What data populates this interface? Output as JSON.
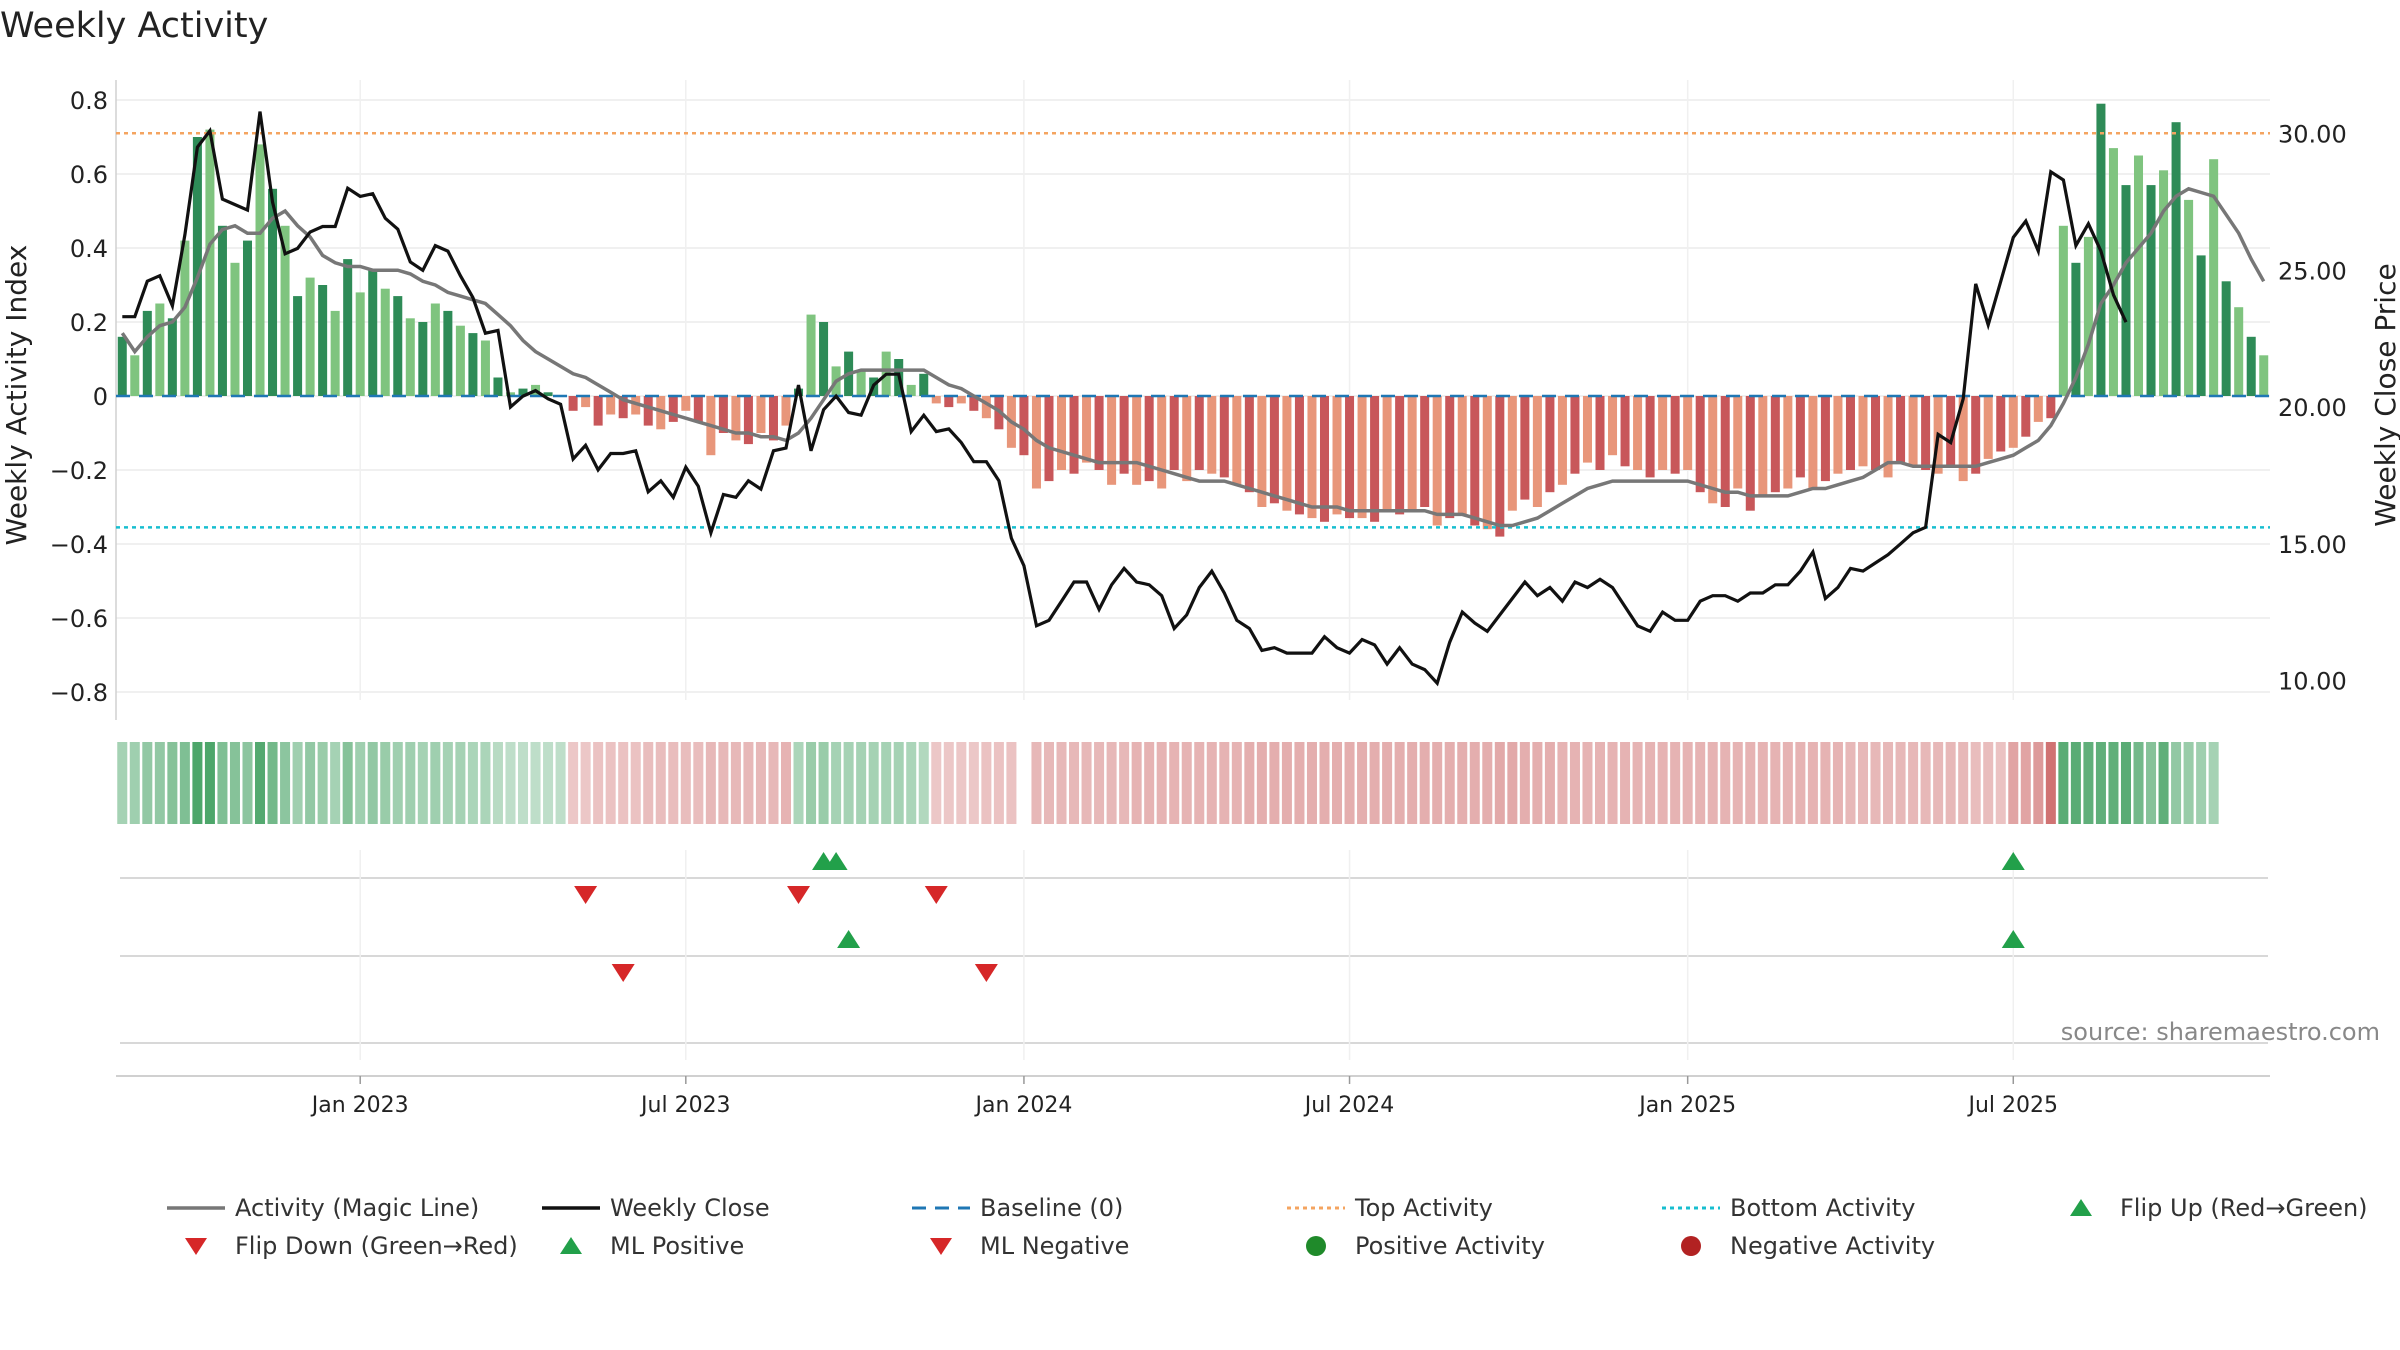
{
  "title": "Weekly Activity",
  "source": "source: sharemaestro.com",
  "colors": {
    "pos_dark": "#2e8b57",
    "pos_light": "#7fc47f",
    "neg_dark": "#c8575a",
    "neg_light": "#e8967a",
    "magic": "#777777",
    "close": "#111111",
    "baseline": "#1f77b4",
    "top": "#f4a460",
    "bottom": "#17becf",
    "flip_up": "#22a04a",
    "flip_down": "#d62728"
  },
  "chart_data": {
    "type": "bar",
    "title": "Weekly Activity",
    "ylabel_left": "Weekly Activity Index",
    "ylabel_right": "Weekly Close Price",
    "ylim_left": [
      -0.85,
      0.85
    ],
    "ylim_right": [
      8.8,
      31.7
    ],
    "yticks_left": [
      "0.8",
      "0.6",
      "0.4",
      "0.2",
      "0",
      "−0.2",
      "−0.4",
      "−0.6",
      "−0.8"
    ],
    "yticks_left_values": [
      0.8,
      0.6,
      0.4,
      0.2,
      0,
      -0.2,
      -0.4,
      -0.6,
      -0.8
    ],
    "yticks_right": [
      "30.00",
      "25.00",
      "20.00",
      "15.00",
      "10.00"
    ],
    "yticks_right_values": [
      30,
      25,
      20,
      15,
      10
    ],
    "xticks": [
      "Jan 2023",
      "Jul 2023",
      "Jan 2024",
      "Jul 2024",
      "Jan 2025",
      "Jul 2025"
    ],
    "xticks_week_index": [
      19,
      45,
      72,
      98,
      125,
      151
    ],
    "top_activity": 0.71,
    "bottom_activity": -0.355,
    "activity": [
      0.16,
      0.11,
      0.23,
      0.25,
      0.21,
      0.42,
      0.7,
      0.72,
      0.46,
      0.36,
      0.42,
      0.68,
      0.56,
      0.46,
      0.27,
      0.32,
      0.3,
      0.23,
      0.37,
      0.28,
      0.34,
      0.29,
      0.27,
      0.21,
      0.2,
      0.25,
      0.23,
      0.19,
      0.17,
      0.15,
      0.05,
      0.01,
      0.02,
      0.03,
      0.01,
      0.0,
      -0.04,
      -0.03,
      -0.08,
      -0.05,
      -0.06,
      -0.05,
      -0.08,
      -0.09,
      -0.07,
      -0.04,
      -0.07,
      -0.16,
      -0.1,
      -0.12,
      -0.13,
      -0.1,
      -0.12,
      -0.08,
      0.02,
      0.22,
      0.2,
      0.08,
      0.12,
      0.07,
      0.05,
      0.12,
      0.1,
      0.03,
      0.06,
      -0.02,
      -0.03,
      -0.02,
      -0.04,
      -0.06,
      -0.09,
      -0.14,
      -0.16,
      -0.25,
      -0.23,
      -0.2,
      -0.21,
      -0.18,
      -0.2,
      -0.24,
      -0.21,
      -0.24,
      -0.23,
      -0.25,
      -0.2,
      -0.23,
      -0.2,
      -0.21,
      -0.22,
      -0.24,
      -0.26,
      -0.3,
      -0.29,
      -0.31,
      -0.32,
      -0.33,
      -0.34,
      -0.32,
      -0.33,
      -0.33,
      -0.34,
      -0.31,
      -0.32,
      -0.31,
      -0.3,
      -0.35,
      -0.33,
      -0.32,
      -0.35,
      -0.36,
      -0.38,
      -0.31,
      -0.28,
      -0.3,
      -0.26,
      -0.24,
      -0.21,
      -0.18,
      -0.2,
      -0.16,
      -0.19,
      -0.2,
      -0.22,
      -0.2,
      -0.21,
      -0.2,
      -0.26,
      -0.29,
      -0.3,
      -0.25,
      -0.31,
      -0.27,
      -0.26,
      -0.25,
      -0.22,
      -0.25,
      -0.23,
      -0.21,
      -0.2,
      -0.19,
      -0.2,
      -0.22,
      -0.18,
      -0.19,
      -0.2,
      -0.21,
      -0.19,
      -0.23,
      -0.21,
      -0.17,
      -0.15,
      -0.14,
      -0.11,
      -0.07,
      -0.06,
      0.46,
      0.36,
      0.43,
      0.79,
      0.67,
      0.57,
      0.65,
      0.57,
      0.61,
      0.74,
      0.53,
      0.38,
      0.64,
      0.31,
      0.24,
      0.16,
      0.11
    ],
    "magic_line": [
      0.17,
      0.12,
      0.16,
      0.19,
      0.2,
      0.24,
      0.32,
      0.41,
      0.45,
      0.46,
      0.44,
      0.44,
      0.48,
      0.5,
      0.46,
      0.43,
      0.38,
      0.36,
      0.35,
      0.35,
      0.34,
      0.34,
      0.34,
      0.33,
      0.31,
      0.3,
      0.28,
      0.27,
      0.26,
      0.25,
      0.22,
      0.19,
      0.15,
      0.12,
      0.1,
      0.08,
      0.06,
      0.05,
      0.03,
      0.01,
      -0.01,
      -0.02,
      -0.03,
      -0.04,
      -0.05,
      -0.06,
      -0.07,
      -0.08,
      -0.09,
      -0.1,
      -0.1,
      -0.11,
      -0.11,
      -0.12,
      -0.1,
      -0.06,
      -0.01,
      0.04,
      0.06,
      0.07,
      0.07,
      0.07,
      0.07,
      0.07,
      0.07,
      0.05,
      0.03,
      0.02,
      0.0,
      -0.02,
      -0.04,
      -0.07,
      -0.09,
      -0.12,
      -0.14,
      -0.15,
      -0.16,
      -0.17,
      -0.18,
      -0.18,
      -0.18,
      -0.18,
      -0.19,
      -0.2,
      -0.21,
      -0.22,
      -0.23,
      -0.23,
      -0.23,
      -0.24,
      -0.25,
      -0.26,
      -0.27,
      -0.28,
      -0.29,
      -0.3,
      -0.3,
      -0.3,
      -0.31,
      -0.31,
      -0.31,
      -0.31,
      -0.31,
      -0.31,
      -0.31,
      -0.32,
      -0.32,
      -0.32,
      -0.33,
      -0.34,
      -0.35,
      -0.35,
      -0.34,
      -0.33,
      -0.31,
      -0.29,
      -0.27,
      -0.25,
      -0.24,
      -0.23,
      -0.23,
      -0.23,
      -0.23,
      -0.23,
      -0.23,
      -0.23,
      -0.24,
      -0.25,
      -0.26,
      -0.26,
      -0.27,
      -0.27,
      -0.27,
      -0.27,
      -0.26,
      -0.25,
      -0.25,
      -0.24,
      -0.23,
      -0.22,
      -0.2,
      -0.18,
      -0.18,
      -0.19,
      -0.19,
      -0.19,
      -0.19,
      -0.19,
      -0.19,
      -0.18,
      -0.17,
      -0.16,
      -0.14,
      -0.12,
      -0.08,
      -0.02,
      0.05,
      0.14,
      0.25,
      0.3,
      0.36,
      0.4,
      0.44,
      0.5,
      0.54,
      0.56,
      0.55,
      0.54,
      0.49,
      0.44,
      0.37,
      0.31
    ],
    "weekly_close": [
      23.3,
      23.3,
      24.6,
      24.8,
      23.7,
      26.3,
      29.5,
      30.1,
      27.6,
      27.4,
      27.2,
      30.8,
      27.5,
      25.6,
      25.8,
      26.4,
      26.6,
      26.6,
      28.0,
      27.7,
      27.8,
      26.9,
      26.5,
      25.3,
      25.0,
      25.9,
      25.7,
      24.8,
      24.0,
      22.7,
      22.8,
      20.0,
      20.4,
      20.6,
      20.3,
      20.1,
      18.1,
      18.6,
      17.7,
      18.3,
      18.3,
      18.4,
      16.9,
      17.3,
      16.7,
      17.8,
      17.1,
      15.4,
      16.8,
      16.7,
      17.3,
      17.0,
      18.4,
      18.5,
      20.8,
      18.4,
      19.9,
      20.4,
      19.8,
      19.7,
      20.8,
      21.2,
      21.2,
      19.1,
      19.7,
      19.1,
      19.2,
      18.7,
      18.0,
      18.0,
      17.3,
      15.2,
      14.2,
      12.0,
      12.2,
      12.9,
      13.6,
      13.6,
      12.6,
      13.5,
      14.1,
      13.6,
      13.5,
      13.1,
      11.9,
      12.4,
      13.4,
      14.0,
      13.2,
      12.2,
      11.9,
      11.1,
      11.2,
      11.0,
      11.0,
      11.0,
      11.6,
      11.2,
      11.0,
      11.5,
      11.3,
      10.6,
      11.2,
      10.6,
      10.4,
      9.9,
      11.4,
      12.5,
      12.1,
      11.8,
      12.4,
      13.0,
      13.6,
      13.1,
      13.4,
      12.9,
      13.6,
      13.4,
      13.7,
      13.4,
      12.7,
      12.0,
      11.8,
      12.5,
      12.2,
      12.2,
      12.9,
      13.1,
      13.1,
      12.9,
      13.2,
      13.2,
      13.5,
      13.5,
      14.0,
      14.7,
      13.0,
      13.4,
      14.1,
      14.0,
      14.3,
      14.6,
      15.0,
      15.4,
      15.6,
      19.0,
      18.7,
      20.3,
      24.5,
      23.0,
      24.6,
      26.2,
      26.8,
      25.7,
      28.6,
      28.3,
      25.9,
      26.7,
      25.7,
      24.1,
      23.1
    ],
    "flip_up": [
      56,
      57,
      151
    ],
    "flip_down": [
      37,
      54,
      65
    ],
    "ml_positive": [
      58,
      151
    ],
    "ml_negative": [
      40,
      69
    ],
    "strip": [
      0.3,
      0.35,
      0.45,
      0.45,
      0.55,
      0.6,
      1.0,
      1.0,
      0.6,
      0.55,
      0.5,
      0.95,
      0.7,
      0.5,
      0.35,
      0.45,
      0.4,
      0.3,
      0.55,
      0.35,
      0.45,
      0.4,
      0.35,
      0.35,
      0.3,
      0.35,
      0.3,
      0.3,
      0.25,
      0.25,
      0.15,
      0.1,
      0.1,
      0.1,
      0.1,
      0.1,
      0.15,
      0.15,
      0.2,
      0.2,
      0.2,
      0.2,
      0.25,
      0.25,
      0.25,
      0.25,
      0.25,
      0.3,
      0.3,
      0.3,
      0.3,
      0.3,
      0.3,
      0.35,
      0.25,
      0.4,
      0.4,
      0.3,
      0.3,
      0.3,
      0.3,
      0.3,
      0.3,
      0.25,
      0.2,
      0.15,
      0.15,
      0.15,
      0.15,
      0.2,
      0.2,
      0.2,
      null,
      0.3,
      0.3,
      0.3,
      0.3,
      0.3,
      0.3,
      0.3,
      0.3,
      0.35,
      0.35,
      0.35,
      0.35,
      0.35,
      0.35,
      0.35,
      0.35,
      0.35,
      0.4,
      0.4,
      0.4,
      0.4,
      0.4,
      0.4,
      0.4,
      0.4,
      0.4,
      0.4,
      0.4,
      0.4,
      0.4,
      0.4,
      0.4,
      0.4,
      0.4,
      0.4,
      0.4,
      0.4,
      0.45,
      0.45,
      0.4,
      0.4,
      0.4,
      0.35,
      0.35,
      0.35,
      0.35,
      0.35,
      0.35,
      0.35,
      0.35,
      0.35,
      0.35,
      0.35,
      0.35,
      0.35,
      0.35,
      0.35,
      0.35,
      0.35,
      0.35,
      0.35,
      0.35,
      0.35,
      0.35,
      0.35,
      0.3,
      0.3,
      0.3,
      0.3,
      0.3,
      0.3,
      0.3,
      0.3,
      0.3,
      0.3,
      0.25,
      0.25,
      0.2,
      0.5,
      0.5,
      0.6,
      1.0,
      0.9,
      0.9,
      0.85,
      0.85,
      0.85,
      0.9,
      0.7,
      0.55,
      0.85,
      0.45,
      0.4,
      0.35,
      0.3
    ]
  },
  "legend": [
    {
      "key": "magic",
      "label": "Activity (Magic Line)",
      "symbol": "line"
    },
    {
      "key": "close",
      "label": "Weekly Close",
      "symbol": "line"
    },
    {
      "key": "baseline",
      "label": "Baseline (0)",
      "symbol": "dash"
    },
    {
      "key": "top",
      "label": "Top Activity",
      "symbol": "dot"
    },
    {
      "key": "bottom",
      "label": "Bottom Activity",
      "symbol": "dot"
    },
    {
      "key": "flip_up",
      "label": "Flip Up (Red→Green)",
      "symbol": "tri-up"
    },
    {
      "key": "flip_down",
      "label": "Flip Down (Green→Red)",
      "symbol": "tri-down"
    },
    {
      "key": "flip_up",
      "label": "ML Positive",
      "symbol": "tri-up"
    },
    {
      "key": "flip_down",
      "label": "ML Negative",
      "symbol": "tri-down"
    },
    {
      "key": "pos_activity",
      "label": "Positive Activity",
      "symbol": "circle-green"
    },
    {
      "key": "neg_activity",
      "label": "Negative Activity",
      "symbol": "circle-red"
    }
  ]
}
